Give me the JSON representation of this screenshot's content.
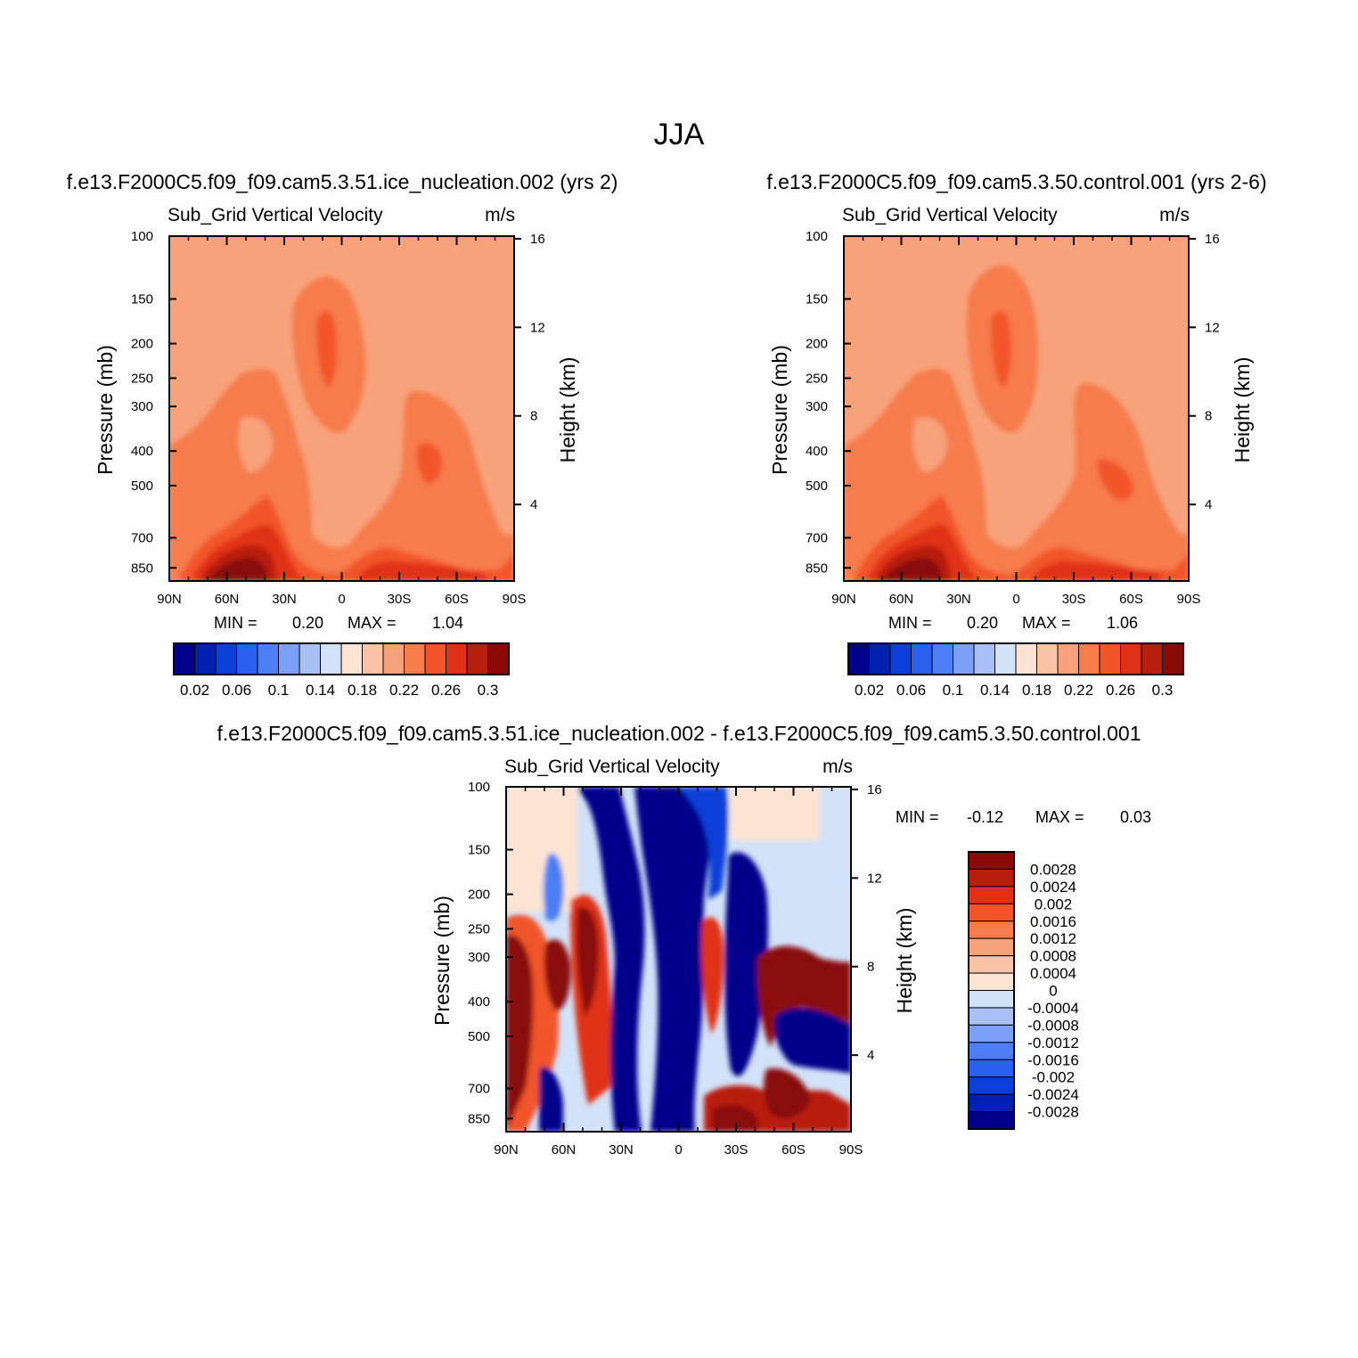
{
  "suptitle": "JJA",
  "panels": [
    {
      "title": "f.e13.F2000C5.f09_f09.cam5.3.51.ice_nucleation.002 (yrs 2)",
      "left_label": "Sub_Grid Vertical Velocity",
      "right_label": "m/s",
      "min_label": "MIN =",
      "min_value": "0.20",
      "max_label": "MAX =",
      "max_value": "1.04",
      "ylabel": "Pressure (mb)",
      "ylabel_right": "Height (km)"
    },
    {
      "title": "f.e13.F2000C5.f09_f09.cam5.3.50.control.001 (yrs 2-6)",
      "left_label": "Sub_Grid Vertical Velocity",
      "right_label": "m/s",
      "min_label": "MIN =",
      "min_value": "0.20",
      "max_label": "MAX =",
      "max_value": "1.06",
      "ylabel": "Pressure (mb)",
      "ylabel_right": "Height (km)"
    },
    {
      "title": "f.e13.F2000C5.f09_f09.cam5.3.51.ice_nucleation.002 - f.e13.F2000C5.f09_f09.cam5.3.50.control.001",
      "left_label": "Sub_Grid Vertical Velocity",
      "right_label": "m/s",
      "min_label": "MIN =",
      "min_value": "-0.12",
      "max_label": "MAX =",
      "max_value": "0.03",
      "ylabel": "Pressure (mb)",
      "ylabel_right": "Height (km)"
    }
  ],
  "chart_data": [
    {
      "type": "heatmap",
      "panel": "ice_nucleation.002",
      "x_ticks": [
        "90N",
        "60N",
        "30N",
        "0",
        "30S",
        "60S",
        "90S"
      ],
      "x_range": [
        90,
        -90
      ],
      "y_ticks": [
        100,
        150,
        200,
        250,
        300,
        400,
        500,
        700,
        850
      ],
      "y_range_mb": [
        100,
        925
      ],
      "height_ticks_km": [
        4,
        8,
        12,
        16
      ],
      "colorbar_levels": [
        "0.02",
        "0.06",
        "0.1",
        "0.14",
        "0.18",
        "0.22",
        "0.26",
        "0.3"
      ],
      "min": 0.2,
      "max": 1.04
    },
    {
      "type": "heatmap",
      "panel": "control.001",
      "x_ticks": [
        "90N",
        "60N",
        "30N",
        "0",
        "30S",
        "60S",
        "90S"
      ],
      "x_range": [
        90,
        -90
      ],
      "y_ticks": [
        100,
        150,
        200,
        250,
        300,
        400,
        500,
        700,
        850
      ],
      "y_range_mb": [
        100,
        925
      ],
      "height_ticks_km": [
        4,
        8,
        12,
        16
      ],
      "colorbar_levels": [
        "0.02",
        "0.06",
        "0.1",
        "0.14",
        "0.18",
        "0.22",
        "0.26",
        "0.3"
      ],
      "min": 0.2,
      "max": 1.06
    },
    {
      "type": "heatmap",
      "panel": "difference",
      "x_ticks": [
        "90N",
        "60N",
        "30N",
        "0",
        "30S",
        "60S",
        "90S"
      ],
      "x_range": [
        90,
        -90
      ],
      "y_ticks": [
        100,
        150,
        200,
        250,
        300,
        400,
        500,
        700,
        850
      ],
      "y_range_mb": [
        100,
        925
      ],
      "height_ticks_km": [
        4,
        8,
        12,
        16
      ],
      "colorbar_levels": [
        "0.0028",
        "0.0024",
        "0.002",
        "0.0016",
        "0.0012",
        "0.0008",
        "0.0004",
        "0",
        "-0.0004",
        "-0.0008",
        "-0.0012",
        "-0.0016",
        "-0.002",
        "-0.0024",
        "-0.0028"
      ],
      "min": -0.12,
      "max": 0.03
    }
  ],
  "colors": {
    "blue_red_16": [
      "#00008b",
      "#0020b0",
      "#0a3fd8",
      "#2a5ff0",
      "#4c7ef5",
      "#7ba0f5",
      "#a8c0f5",
      "#d2e2f8",
      "#fde4d2",
      "#fbc3a5",
      "#f8a27b",
      "#f67c4b",
      "#f2552a",
      "#e03018",
      "#b81e0c",
      "#8a0a08"
    ]
  }
}
